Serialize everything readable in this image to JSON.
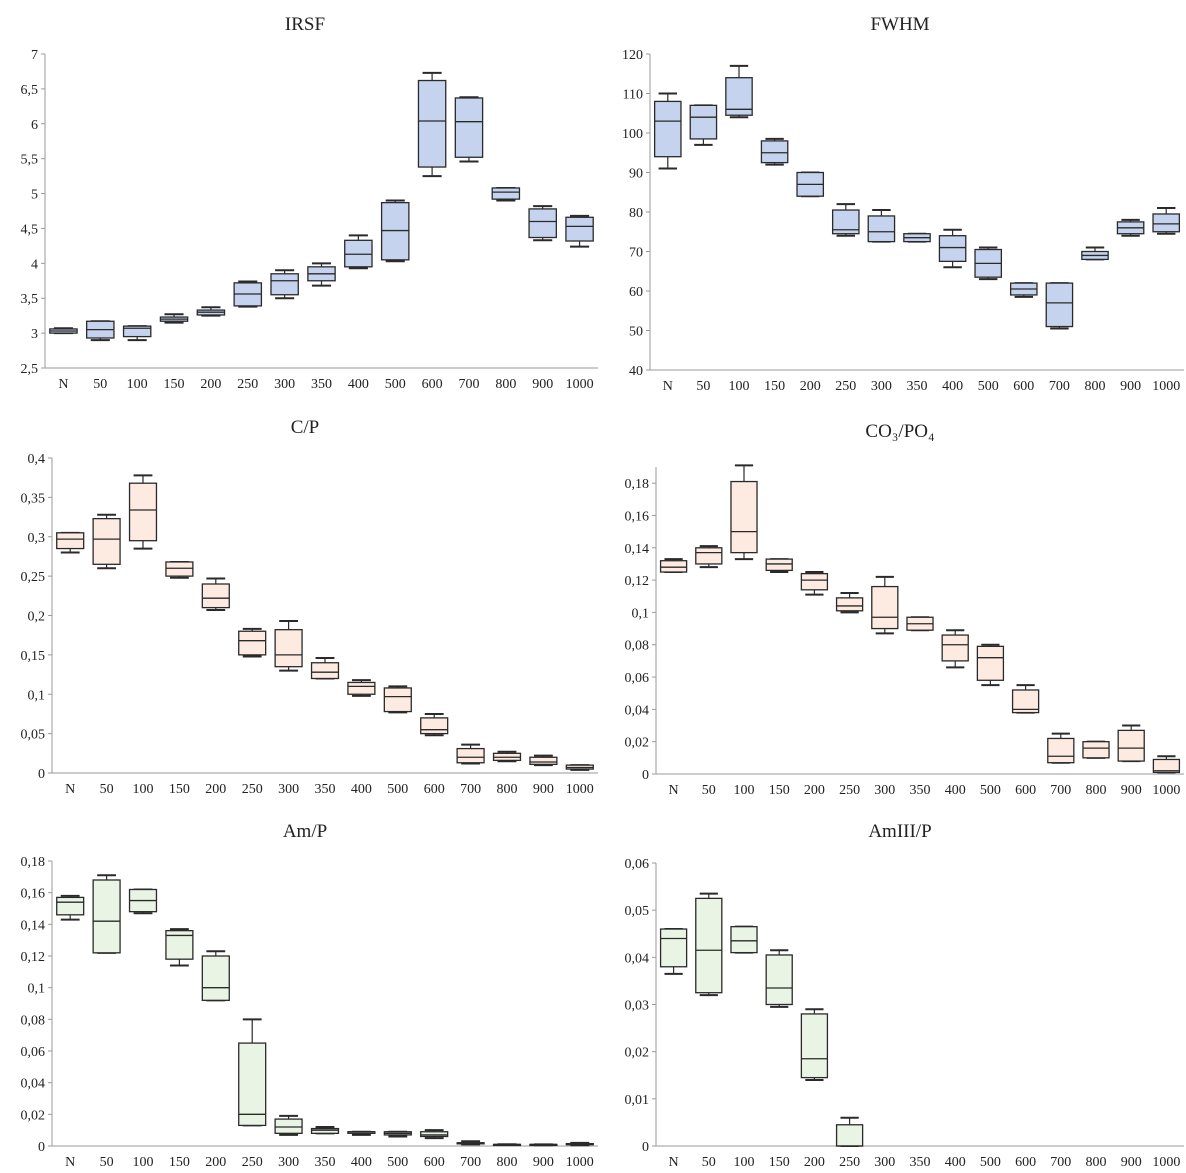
{
  "categories": [
    "N",
    "50",
    "100",
    "150",
    "200",
    "250",
    "300",
    "350",
    "400",
    "500",
    "600",
    "700",
    "800",
    "900",
    "1000"
  ],
  "colors": {
    "blue": "#c5d3ee",
    "peach": "#fdeae0",
    "green": "#eaf4e4",
    "stroke": "#2a2a2a",
    "axis": "#9a9a9a"
  },
  "chart_data": [
    {
      "type": "box",
      "title": "IRSF",
      "fill": "blue",
      "ylim": [
        2.5,
        7
      ],
      "yticks": [
        "2,5",
        "3",
        "3,5",
        "4",
        "4,5",
        "5",
        "5,5",
        "6",
        "6,5",
        "7"
      ],
      "ytick_values": [
        2.5,
        3,
        3.5,
        4,
        4.5,
        5,
        5.5,
        6,
        6.5,
        7
      ],
      "boxes": [
        {
          "min": 3.0,
          "q1": 3.0,
          "median": 3.03,
          "q3": 3.06,
          "max": 3.07
        },
        {
          "min": 2.9,
          "q1": 2.93,
          "median": 3.05,
          "q3": 3.17,
          "max": 3.17
        },
        {
          "min": 2.9,
          "q1": 2.95,
          "median": 3.07,
          "q3": 3.1,
          "max": 3.1
        },
        {
          "min": 3.15,
          "q1": 3.17,
          "median": 3.2,
          "q3": 3.23,
          "max": 3.27
        },
        {
          "min": 3.25,
          "q1": 3.26,
          "median": 3.3,
          "q3": 3.33,
          "max": 3.37
        },
        {
          "min": 3.38,
          "q1": 3.39,
          "median": 3.56,
          "q3": 3.72,
          "max": 3.74
        },
        {
          "min": 3.5,
          "q1": 3.55,
          "median": 3.75,
          "q3": 3.85,
          "max": 3.9
        },
        {
          "min": 3.68,
          "q1": 3.75,
          "median": 3.85,
          "q3": 3.95,
          "max": 4.0
        },
        {
          "min": 3.93,
          "q1": 3.95,
          "median": 4.13,
          "q3": 4.33,
          "max": 4.4
        },
        {
          "min": 4.03,
          "q1": 4.05,
          "median": 4.47,
          "q3": 4.87,
          "max": 4.9
        },
        {
          "min": 5.25,
          "q1": 5.38,
          "median": 6.04,
          "q3": 6.62,
          "max": 6.73
        },
        {
          "min": 5.46,
          "q1": 5.52,
          "median": 6.03,
          "q3": 6.37,
          "max": 6.38
        },
        {
          "min": 4.9,
          "q1": 4.92,
          "median": 5.02,
          "q3": 5.08,
          "max": 5.08
        },
        {
          "min": 4.33,
          "q1": 4.37,
          "median": 4.6,
          "q3": 4.78,
          "max": 4.82
        },
        {
          "min": 4.24,
          "q1": 4.32,
          "median": 4.53,
          "q3": 4.66,
          "max": 4.68
        }
      ]
    },
    {
      "type": "box",
      "title": "FWHM",
      "fill": "blue",
      "ylim": [
        40,
        120
      ],
      "yticks": [
        "40",
        "50",
        "60",
        "70",
        "80",
        "90",
        "100",
        "110",
        "120"
      ],
      "ytick_values": [
        40,
        50,
        60,
        70,
        80,
        90,
        100,
        110,
        120
      ],
      "boxes": [
        {
          "min": 91,
          "q1": 94,
          "median": 103,
          "q3": 108,
          "max": 110
        },
        {
          "min": 97,
          "q1": 98.5,
          "median": 104,
          "q3": 107,
          "max": 107
        },
        {
          "min": 104,
          "q1": 104.5,
          "median": 106,
          "q3": 114,
          "max": 117
        },
        {
          "min": 92,
          "q1": 92.5,
          "median": 95,
          "q3": 98,
          "max": 98.5
        },
        {
          "min": 84,
          "q1": 84,
          "median": 87,
          "q3": 90,
          "max": 90
        },
        {
          "min": 74,
          "q1": 74.5,
          "median": 75.5,
          "q3": 80.5,
          "max": 82
        },
        {
          "min": 72.5,
          "q1": 72.5,
          "median": 75,
          "q3": 79,
          "max": 80.5
        },
        {
          "min": 72.5,
          "q1": 72.5,
          "median": 73.5,
          "q3": 74.5,
          "max": 74.5
        },
        {
          "min": 66,
          "q1": 67.5,
          "median": 71,
          "q3": 74,
          "max": 75.5
        },
        {
          "min": 63,
          "q1": 63.5,
          "median": 67,
          "q3": 70.5,
          "max": 71
        },
        {
          "min": 58.5,
          "q1": 59,
          "median": 60.5,
          "q3": 62,
          "max": 62
        },
        {
          "min": 50.5,
          "q1": 51,
          "median": 57,
          "q3": 62,
          "max": 62
        },
        {
          "min": 68,
          "q1": 68,
          "median": 69,
          "q3": 70,
          "max": 71
        },
        {
          "min": 74,
          "q1": 74.5,
          "median": 76,
          "q3": 77.5,
          "max": 78
        },
        {
          "min": 74.5,
          "q1": 75,
          "median": 77,
          "q3": 79.5,
          "max": 81
        }
      ]
    },
    {
      "type": "box",
      "title": "C/P",
      "fill": "peach",
      "ylim": [
        0,
        0.4
      ],
      "yticks": [
        "0",
        "0,05",
        "0,1",
        "0,15",
        "0,2",
        "0,25",
        "0,3",
        "0,35",
        "0,4"
      ],
      "ytick_values": [
        0,
        0.05,
        0.1,
        0.15,
        0.2,
        0.25,
        0.3,
        0.35,
        0.4
      ],
      "boxes": [
        {
          "min": 0.28,
          "q1": 0.285,
          "median": 0.297,
          "q3": 0.305,
          "max": 0.305
        },
        {
          "min": 0.26,
          "q1": 0.265,
          "median": 0.297,
          "q3": 0.323,
          "max": 0.328
        },
        {
          "min": 0.285,
          "q1": 0.295,
          "median": 0.334,
          "q3": 0.368,
          "max": 0.378
        },
        {
          "min": 0.248,
          "q1": 0.25,
          "median": 0.26,
          "q3": 0.268,
          "max": 0.268
        },
        {
          "min": 0.207,
          "q1": 0.21,
          "median": 0.222,
          "q3": 0.24,
          "max": 0.247
        },
        {
          "min": 0.148,
          "q1": 0.15,
          "median": 0.168,
          "q3": 0.18,
          "max": 0.183
        },
        {
          "min": 0.13,
          "q1": 0.135,
          "median": 0.15,
          "q3": 0.182,
          "max": 0.193
        },
        {
          "min": 0.12,
          "q1": 0.12,
          "median": 0.128,
          "q3": 0.14,
          "max": 0.146
        },
        {
          "min": 0.098,
          "q1": 0.1,
          "median": 0.11,
          "q3": 0.115,
          "max": 0.118
        },
        {
          "min": 0.077,
          "q1": 0.078,
          "median": 0.097,
          "q3": 0.108,
          "max": 0.11
        },
        {
          "min": 0.048,
          "q1": 0.05,
          "median": 0.055,
          "q3": 0.07,
          "max": 0.075
        },
        {
          "min": 0.012,
          "q1": 0.013,
          "median": 0.02,
          "q3": 0.031,
          "max": 0.036
        },
        {
          "min": 0.015,
          "q1": 0.016,
          "median": 0.02,
          "q3": 0.025,
          "max": 0.027
        },
        {
          "min": 0.01,
          "q1": 0.011,
          "median": 0.014,
          "q3": 0.02,
          "max": 0.022
        },
        {
          "min": 0.004,
          "q1": 0.005,
          "median": 0.007,
          "q3": 0.01,
          "max": 0.01
        }
      ]
    },
    {
      "type": "box",
      "title": "CO₃/PO₄",
      "fill": "peach",
      "ylim": [
        0,
        0.19
      ],
      "yticks": [
        "0",
        "0,02",
        "0,04",
        "0,06",
        "0,08",
        "0,1",
        "0,12",
        "0,14",
        "0,16",
        "0,18"
      ],
      "ytick_values": [
        0,
        0.02,
        0.04,
        0.06,
        0.08,
        0.1,
        0.12,
        0.14,
        0.16,
        0.18
      ],
      "boxes": [
        {
          "min": 0.125,
          "q1": 0.125,
          "median": 0.128,
          "q3": 0.132,
          "max": 0.133
        },
        {
          "min": 0.128,
          "q1": 0.13,
          "median": 0.137,
          "q3": 0.14,
          "max": 0.141
        },
        {
          "min": 0.133,
          "q1": 0.137,
          "median": 0.15,
          "q3": 0.181,
          "max": 0.191
        },
        {
          "min": 0.125,
          "q1": 0.126,
          "median": 0.13,
          "q3": 0.133,
          "max": 0.133
        },
        {
          "min": 0.111,
          "q1": 0.114,
          "median": 0.12,
          "q3": 0.124,
          "max": 0.125
        },
        {
          "min": 0.1,
          "q1": 0.101,
          "median": 0.104,
          "q3": 0.109,
          "max": 0.112
        },
        {
          "min": 0.087,
          "q1": 0.09,
          "median": 0.097,
          "q3": 0.116,
          "max": 0.122
        },
        {
          "min": 0.089,
          "q1": 0.089,
          "median": 0.093,
          "q3": 0.097,
          "max": 0.097
        },
        {
          "min": 0.066,
          "q1": 0.07,
          "median": 0.08,
          "q3": 0.086,
          "max": 0.089
        },
        {
          "min": 0.055,
          "q1": 0.058,
          "median": 0.072,
          "q3": 0.079,
          "max": 0.08
        },
        {
          "min": 0.038,
          "q1": 0.038,
          "median": 0.04,
          "q3": 0.052,
          "max": 0.055
        },
        {
          "min": 0.007,
          "q1": 0.007,
          "median": 0.011,
          "q3": 0.022,
          "max": 0.025
        },
        {
          "min": 0.01,
          "q1": 0.01,
          "median": 0.016,
          "q3": 0.02,
          "max": 0.02
        },
        {
          "min": 0.008,
          "q1": 0.008,
          "median": 0.016,
          "q3": 0.027,
          "max": 0.03
        },
        {
          "min": 0.001,
          "q1": 0.001,
          "median": 0.002,
          "q3": 0.009,
          "max": 0.011
        }
      ]
    },
    {
      "type": "box",
      "title": "Am/P",
      "fill": "green",
      "ylim": [
        0,
        0.18
      ],
      "yticks": [
        "0",
        "0,02",
        "0,04",
        "0,06",
        "0,08",
        "0,1",
        "0,12",
        "0,14",
        "0,16",
        "0,18"
      ],
      "ytick_values": [
        0,
        0.02,
        0.04,
        0.06,
        0.08,
        0.1,
        0.12,
        0.14,
        0.16,
        0.18
      ],
      "boxes": [
        {
          "min": 0.143,
          "q1": 0.146,
          "median": 0.154,
          "q3": 0.157,
          "max": 0.158
        },
        {
          "min": 0.122,
          "q1": 0.122,
          "median": 0.142,
          "q3": 0.168,
          "max": 0.171
        },
        {
          "min": 0.147,
          "q1": 0.148,
          "median": 0.155,
          "q3": 0.162,
          "max": 0.162
        },
        {
          "min": 0.114,
          "q1": 0.118,
          "median": 0.133,
          "q3": 0.136,
          "max": 0.137
        },
        {
          "min": 0.092,
          "q1": 0.092,
          "median": 0.1,
          "q3": 0.12,
          "max": 0.123
        },
        {
          "min": 0.013,
          "q1": 0.013,
          "median": 0.02,
          "q3": 0.065,
          "max": 0.08
        },
        {
          "min": 0.007,
          "q1": 0.008,
          "median": 0.012,
          "q3": 0.017,
          "max": 0.019
        },
        {
          "min": 0.008,
          "q1": 0.008,
          "median": 0.01,
          "q3": 0.011,
          "max": 0.012
        },
        {
          "min": 0.007,
          "q1": 0.008,
          "median": 0.009,
          "q3": 0.009,
          "max": 0.009
        },
        {
          "min": 0.006,
          "q1": 0.007,
          "median": 0.008,
          "q3": 0.009,
          "max": 0.009
        },
        {
          "min": 0.005,
          "q1": 0.006,
          "median": 0.007,
          "q3": 0.009,
          "max": 0.01
        },
        {
          "min": 0.001,
          "q1": 0.0015,
          "median": 0.002,
          "q3": 0.002,
          "max": 0.003
        },
        {
          "min": 0.001,
          "q1": 0.001,
          "median": 0.001,
          "q3": 0.001,
          "max": 0.001
        },
        {
          "min": 0.0005,
          "q1": 0.0005,
          "median": 0.001,
          "q3": 0.001,
          "max": 0.001
        },
        {
          "min": 0.0005,
          "q1": 0.001,
          "median": 0.001,
          "q3": 0.0015,
          "max": 0.002
        }
      ]
    },
    {
      "type": "box",
      "title": "AmIII/P",
      "fill": "green",
      "ylim": [
        0,
        0.06
      ],
      "yticks": [
        "0",
        "0,01",
        "0,02",
        "0,03",
        "0,04",
        "0,05",
        "0,06"
      ],
      "ytick_values": [
        0,
        0.01,
        0.02,
        0.03,
        0.04,
        0.05,
        0.06
      ],
      "boxes": [
        {
          "min": 0.0365,
          "q1": 0.038,
          "median": 0.044,
          "q3": 0.046,
          "max": 0.046
        },
        {
          "min": 0.032,
          "q1": 0.0325,
          "median": 0.0415,
          "q3": 0.0525,
          "max": 0.0535
        },
        {
          "min": 0.041,
          "q1": 0.041,
          "median": 0.0435,
          "q3": 0.0465,
          "max": 0.0465
        },
        {
          "min": 0.0295,
          "q1": 0.03,
          "median": 0.0335,
          "q3": 0.0405,
          "max": 0.0415
        },
        {
          "min": 0.014,
          "q1": 0.0145,
          "median": 0.0185,
          "q3": 0.028,
          "max": 0.029
        },
        {
          "min": 0.0,
          "q1": 0.0,
          "median": 0.0,
          "q3": 0.0045,
          "max": 0.006
        },
        null,
        null,
        null,
        null,
        null,
        null,
        null,
        null,
        null
      ]
    }
  ]
}
